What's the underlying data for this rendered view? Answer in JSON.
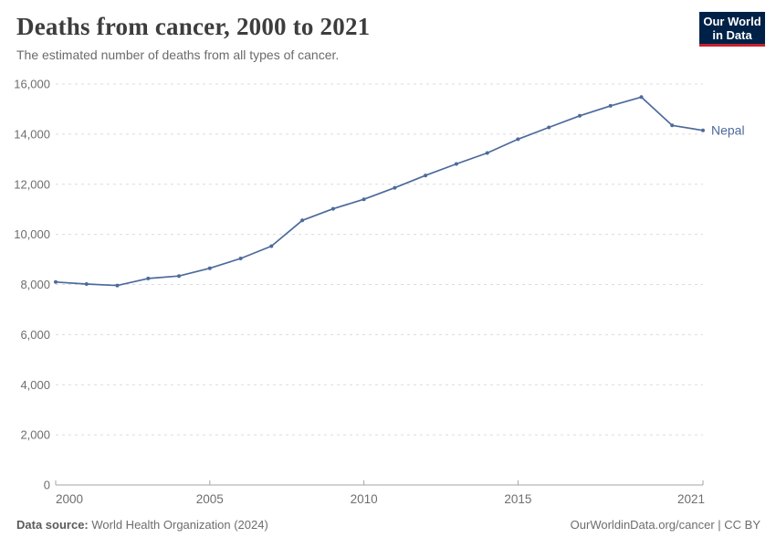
{
  "header": {
    "title": "Deaths from cancer, 2000 to 2021",
    "subtitle": "The estimated number of deaths from all types of cancer.",
    "logo": {
      "line1": "Our World",
      "line2": "in Data",
      "bg_color": "#002147",
      "accent_color": "#c5232f",
      "text_color": "#ffffff"
    }
  },
  "chart_data": {
    "type": "line",
    "title": "Deaths from cancer, 2000 to 2021",
    "xlabel": "",
    "ylabel": "",
    "xlim": [
      2000,
      2021
    ],
    "ylim": [
      0,
      16000
    ],
    "grid": "horizontal-dashed",
    "legend_position": "end-of-line",
    "xticks": [
      2000,
      2005,
      2010,
      2015,
      2021
    ],
    "xtick_labels": [
      "2000",
      "2005",
      "2010",
      "2015",
      "2021"
    ],
    "yticks": [
      0,
      2000,
      4000,
      6000,
      8000,
      10000,
      12000,
      14000,
      16000
    ],
    "ytick_labels": [
      "0",
      "2,000",
      "4,000",
      "6,000",
      "8,000",
      "10,000",
      "12,000",
      "14,000",
      "16,000"
    ],
    "series": [
      {
        "name": "Nepal",
        "color": "#4c6a9c",
        "x": [
          2000,
          2001,
          2002,
          2003,
          2004,
          2005,
          2006,
          2007,
          2008,
          2009,
          2010,
          2011,
          2012,
          2013,
          2014,
          2015,
          2016,
          2017,
          2018,
          2019,
          2020,
          2021
        ],
        "values": [
          8100,
          8020,
          7960,
          8240,
          8340,
          8650,
          9040,
          9530,
          10560,
          11020,
          11400,
          11860,
          12350,
          12810,
          13250,
          13800,
          14270,
          14730,
          15130,
          15480,
          14350,
          14150
        ]
      }
    ],
    "colors": {
      "gridline": "#dcdcdc",
      "axis": "#a5a5a5",
      "tick_label": "#6e6e6e"
    }
  },
  "footer": {
    "source_label": "Data source:",
    "source_value": " World Health Organization (2024)",
    "right_text": "OurWorldinData.org/cancer | CC BY"
  }
}
